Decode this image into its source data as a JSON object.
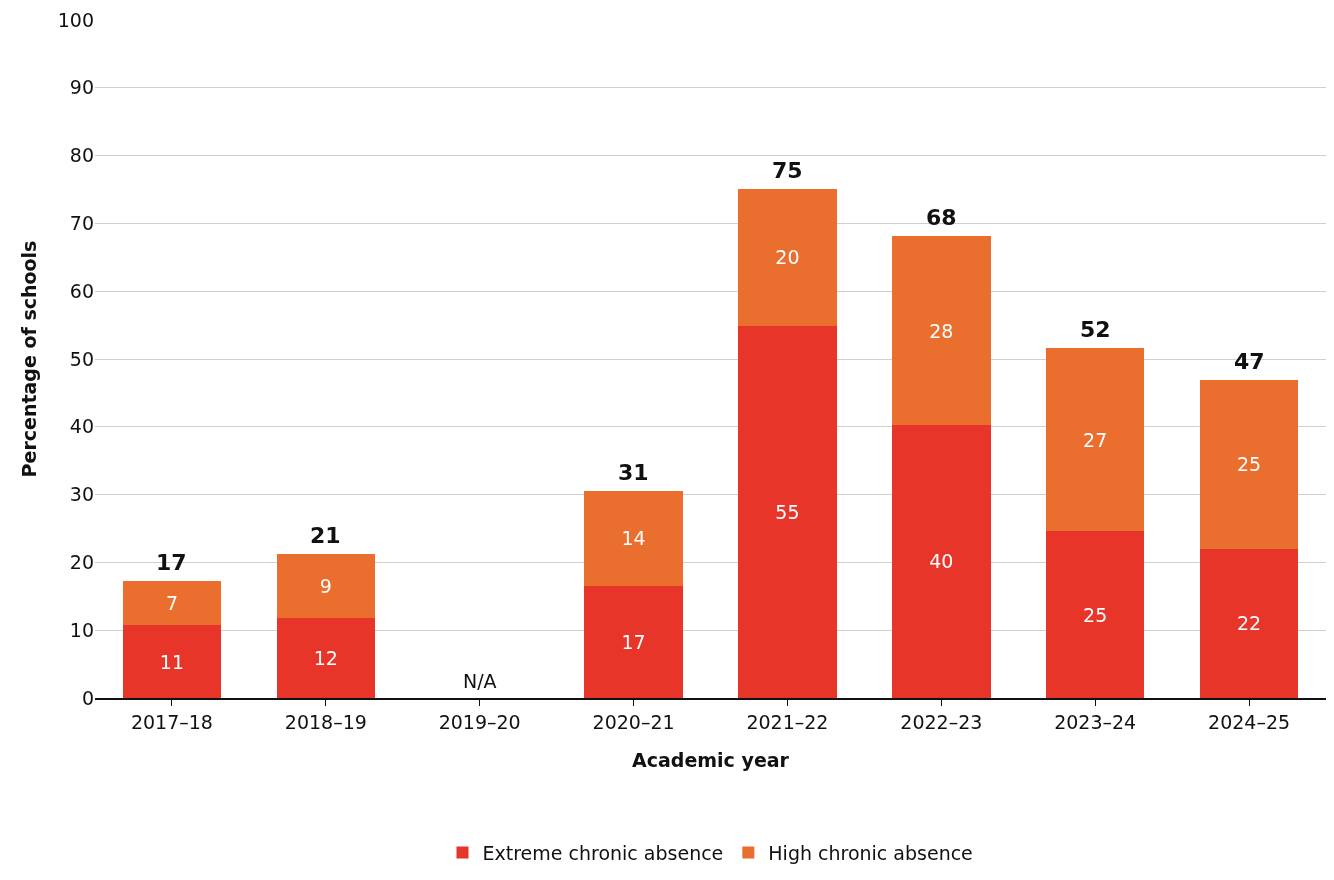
{
  "chart_data": {
    "type": "bar",
    "stacked": true,
    "xlabel": "Academic year",
    "ylabel": "Percentage of schools",
    "categories": [
      "2017–18",
      "2018–19",
      "2019–20",
      "2020–21",
      "2021–22",
      "2022–23",
      "2023–24",
      "2024–25"
    ],
    "series": [
      {
        "name": "Extreme chronic absence",
        "color": "#e8352a",
        "values": [
          10.7,
          11.8,
          null,
          16.5,
          54.9,
          40.3,
          24.6,
          22.0
        ],
        "value_labels": [
          "11",
          "12",
          null,
          "17",
          "55",
          "40",
          "25",
          "22"
        ]
      },
      {
        "name": "High chronic absence",
        "color": "#ea6f2e",
        "values": [
          6.5,
          9.4,
          null,
          14.1,
          20.2,
          27.8,
          27.0,
          24.9
        ],
        "value_labels": [
          "7",
          "9",
          null,
          "14",
          "20",
          "28",
          "27",
          "25"
        ]
      }
    ],
    "totals": [
      "17",
      "21",
      null,
      "31",
      "75",
      "68",
      "52",
      "47"
    ],
    "annotations": [
      "N/A"
    ],
    "ylim": [
      0,
      100
    ],
    "yticks": [
      0,
      10,
      20,
      30,
      40,
      50,
      60,
      70,
      80,
      90,
      100
    ],
    "grid": "y",
    "legend": "bottom"
  }
}
